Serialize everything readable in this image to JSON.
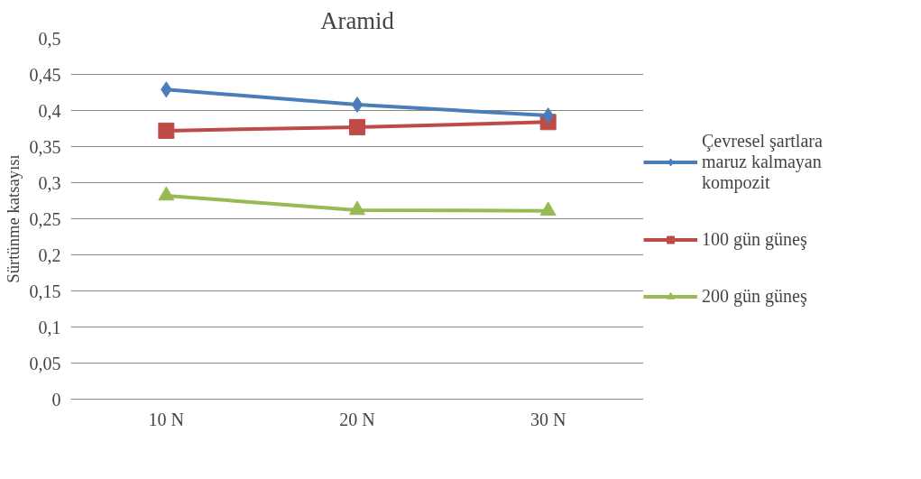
{
  "chart_data": {
    "type": "line",
    "title": "Aramid",
    "ylabel": "Sürtünme katsayısı",
    "categories": [
      "10 N",
      "20 N",
      "30 N"
    ],
    "series": [
      {
        "name": "Çevresel şartlara maruz kalmayan kompozit",
        "color": "#4a7ebb",
        "marker": "diamond",
        "values": [
          0.429,
          0.408,
          0.393
        ]
      },
      {
        "name": "100 gün güneş",
        "color": "#be4b48",
        "marker": "square",
        "values": [
          0.372,
          0.377,
          0.384
        ]
      },
      {
        "name": "200 gün güneş",
        "color": "#98b954",
        "marker": "triangle",
        "values": [
          0.282,
          0.262,
          0.261
        ]
      }
    ],
    "ylim": [
      0,
      0.5
    ],
    "yticks": [
      {
        "value": 0,
        "label": "0"
      },
      {
        "value": 0.05,
        "label": "0,05"
      },
      {
        "value": 0.1,
        "label": "0,1"
      },
      {
        "value": 0.15,
        "label": "0,15"
      },
      {
        "value": 0.2,
        "label": "0,2"
      },
      {
        "value": 0.25,
        "label": "0,25"
      },
      {
        "value": 0.3,
        "label": "0,3"
      },
      {
        "value": 0.35,
        "label": "0,35"
      },
      {
        "value": 0.4,
        "label": "0,4"
      },
      {
        "value": 0.45,
        "label": "0,45"
      },
      {
        "value": 0.5,
        "label": "0,5"
      }
    ],
    "grid": "y",
    "legend": "right",
    "line_style": "solid"
  }
}
